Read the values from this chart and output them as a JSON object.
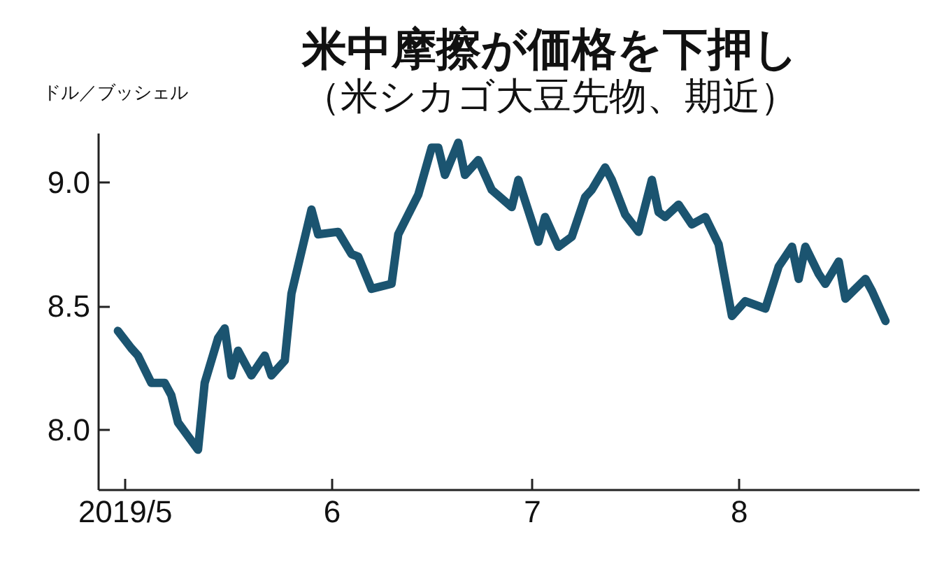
{
  "chart_data": {
    "type": "line",
    "title": "米中摩擦が価格を下押し",
    "subtitle": "（米シカゴ大豆先物、期近）",
    "ylabel": "ドル／ブッシェル",
    "x": [
      "2019-04-30",
      "2019-05-02",
      "2019-05-03",
      "2019-05-05",
      "2019-05-07",
      "2019-05-08",
      "2019-05-09",
      "2019-05-12",
      "2019-05-13",
      "2019-05-15",
      "2019-05-16",
      "2019-05-17",
      "2019-05-18",
      "2019-05-20",
      "2019-05-22",
      "2019-05-23",
      "2019-05-25",
      "2019-05-26",
      "2019-05-29",
      "2019-05-30",
      "2019-06-02",
      "2019-06-04",
      "2019-06-05",
      "2019-06-07",
      "2019-06-10",
      "2019-06-11",
      "2019-06-14",
      "2019-06-16",
      "2019-06-17",
      "2019-06-18",
      "2019-06-20",
      "2019-06-21",
      "2019-06-23",
      "2019-06-24",
      "2019-06-25",
      "2019-06-28",
      "2019-06-29",
      "2019-07-02",
      "2019-07-03",
      "2019-07-05",
      "2019-07-07",
      "2019-07-09",
      "2019-07-10",
      "2019-07-12",
      "2019-07-13",
      "2019-07-15",
      "2019-07-17",
      "2019-07-19",
      "2019-07-20",
      "2019-07-21",
      "2019-07-23",
      "2019-07-25",
      "2019-07-27",
      "2019-07-29",
      "2019-07-31",
      "2019-08-02",
      "2019-08-05",
      "2019-08-07",
      "2019-08-09",
      "2019-08-10",
      "2019-08-11",
      "2019-08-13",
      "2019-08-14",
      "2019-08-16",
      "2019-08-17",
      "2019-08-20",
      "2019-08-21",
      "2019-08-23"
    ],
    "series": [
      {
        "color": "#1b5470",
        "values": [
          8.4,
          8.33,
          8.3,
          8.19,
          8.19,
          8.14,
          8.03,
          7.92,
          8.19,
          8.37,
          8.41,
          8.22,
          8.32,
          8.22,
          8.3,
          8.22,
          8.28,
          8.55,
          8.89,
          8.79,
          8.8,
          8.71,
          8.7,
          8.57,
          8.59,
          8.79,
          8.95,
          9.14,
          9.14,
          9.03,
          9.16,
          9.03,
          9.09,
          9.03,
          8.97,
          8.9,
          9.01,
          8.76,
          8.86,
          8.74,
          8.78,
          8.94,
          8.97,
          9.06,
          9.01,
          8.87,
          8.8,
          9.01,
          8.88,
          8.86,
          8.91,
          8.83,
          8.86,
          8.75,
          8.46,
          8.52,
          8.49,
          8.66,
          8.74,
          8.61,
          8.74,
          8.63,
          8.59,
          8.68,
          8.53,
          8.61,
          8.56,
          8.44
        ]
      }
    ],
    "xlim": [
      "2019-04-27",
      "2019-08-28"
    ],
    "xticks": [
      {
        "value": "2019-05-01",
        "label": "2019/5"
      },
      {
        "value": "2019-06-01",
        "label": "6"
      },
      {
        "value": "2019-07-01",
        "label": "7"
      },
      {
        "value": "2019-08-01",
        "label": "8"
      }
    ],
    "ylim": [
      7.76,
      9.2
    ],
    "yticks": [
      {
        "value": 8,
        "label": "8.0"
      },
      {
        "value": 8.5,
        "label": "8.5"
      },
      {
        "value": 9,
        "label": "9.0"
      }
    ],
    "grid": false,
    "marker": "none",
    "line_style": "solid"
  }
}
